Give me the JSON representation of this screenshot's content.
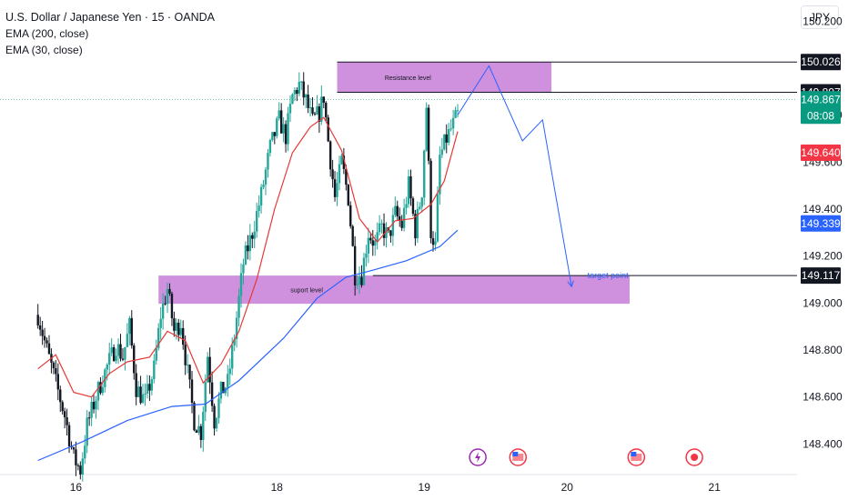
{
  "header": {
    "title": "U.S. Dollar / Japanese Yen · 15 · OANDA",
    "indicators": [
      "EMA (200, close)",
      "EMA (30, close)"
    ],
    "currency_button": "JPY"
  },
  "colors": {
    "up": "#26a69a",
    "down": "#131722",
    "ema200": "#2962ff",
    "ema30": "#e53935",
    "zone": "#c77ed8",
    "arrow": "#2962ff",
    "badge_current": "#089981",
    "badge_red": "#f23645",
    "badge_blue": "#2962ff",
    "badge_black": "#131722"
  },
  "chart_data": {
    "type": "candlestick",
    "ylim": [
      148.27,
      150.29
    ],
    "y_ticks": [
      "150.200",
      "149.800",
      "149.600",
      "149.400",
      "149.200",
      "149.000",
      "148.800",
      "148.600",
      "148.400"
    ],
    "x_ticks": [
      {
        "label": "16",
        "t": 17
      },
      {
        "label": "18",
        "t": 107
      },
      {
        "label": "19",
        "t": 173
      },
      {
        "label": "20",
        "t": 237
      },
      {
        "label": "21",
        "t": 303
      }
    ],
    "t_range": [
      -17,
      340
    ],
    "close_path": [
      [
        0,
        148.95
      ],
      [
        4,
        148.8
      ],
      [
        8,
        148.66
      ],
      [
        12,
        148.52
      ],
      [
        16,
        148.34
      ],
      [
        19,
        148.29
      ],
      [
        22,
        148.48
      ],
      [
        27,
        148.63
      ],
      [
        31,
        148.73
      ],
      [
        35,
        148.82
      ],
      [
        38,
        148.77
      ],
      [
        41,
        148.9
      ],
      [
        44,
        148.64
      ],
      [
        48,
        148.58
      ],
      [
        52,
        148.72
      ],
      [
        55,
        148.95
      ],
      [
        58,
        149.06
      ],
      [
        61,
        148.88
      ],
      [
        64,
        148.92
      ],
      [
        67,
        148.7
      ],
      [
        70,
        148.5
      ],
      [
        73,
        148.45
      ],
      [
        76,
        148.78
      ],
      [
        79,
        148.5
      ],
      [
        82,
        148.62
      ],
      [
        85,
        148.66
      ],
      [
        88,
        148.86
      ],
      [
        92,
        149.17
      ],
      [
        96,
        149.3
      ],
      [
        100,
        149.46
      ],
      [
        104,
        149.66
      ],
      [
        108,
        149.78
      ],
      [
        111,
        149.71
      ],
      [
        114,
        149.88
      ],
      [
        117,
        149.93
      ],
      [
        120,
        149.86
      ],
      [
        123,
        149.77
      ],
      [
        126,
        149.81
      ],
      [
        128,
        149.88
      ],
      [
        130,
        149.69
      ],
      [
        133,
        149.45
      ],
      [
        136,
        149.6
      ],
      [
        139,
        149.45
      ],
      [
        142,
        149.12
      ],
      [
        145,
        149.12
      ],
      [
        148,
        149.3
      ],
      [
        151,
        149.25
      ],
      [
        154,
        149.32
      ],
      [
        157,
        149.28
      ],
      [
        160,
        149.38
      ],
      [
        163,
        149.33
      ],
      [
        166,
        149.5
      ],
      [
        169,
        149.31
      ],
      [
        172,
        149.48
      ],
      [
        174,
        149.84
      ],
      [
        176,
        149.31
      ],
      [
        178,
        149.24
      ],
      [
        180,
        149.62
      ],
      [
        183,
        149.7
      ],
      [
        186,
        149.76
      ],
      [
        188,
        149.8
      ]
    ],
    "series": [
      {
        "name": "EMA (200, close)",
        "points": [
          [
            0,
            148.33
          ],
          [
            20,
            148.41
          ],
          [
            40,
            148.5
          ],
          [
            60,
            148.56
          ],
          [
            75,
            148.57
          ],
          [
            90,
            148.67
          ],
          [
            110,
            148.85
          ],
          [
            125,
            149.02
          ],
          [
            138,
            149.11
          ],
          [
            150,
            149.14
          ],
          [
            165,
            149.18
          ],
          [
            180,
            149.24
          ],
          [
            188,
            149.31
          ]
        ]
      },
      {
        "name": "EMA (30, close)",
        "points": [
          [
            0,
            148.72
          ],
          [
            8,
            148.78
          ],
          [
            16,
            148.62
          ],
          [
            24,
            148.6
          ],
          [
            32,
            148.7
          ],
          [
            40,
            148.75
          ],
          [
            50,
            148.77
          ],
          [
            58,
            148.88
          ],
          [
            66,
            148.84
          ],
          [
            74,
            148.66
          ],
          [
            82,
            148.74
          ],
          [
            90,
            148.88
          ],
          [
            98,
            149.1
          ],
          [
            106,
            149.4
          ],
          [
            114,
            149.64
          ],
          [
            122,
            149.75
          ],
          [
            128,
            149.79
          ],
          [
            136,
            149.65
          ],
          [
            144,
            149.36
          ],
          [
            152,
            149.26
          ],
          [
            160,
            149.35
          ],
          [
            168,
            149.36
          ],
          [
            176,
            149.42
          ],
          [
            182,
            149.52
          ],
          [
            188,
            149.73
          ]
        ]
      }
    ],
    "zones": [
      {
        "label": "Resistance level",
        "t1": 134,
        "t2": 230,
        "y_top": 150.026,
        "y_bottom": 149.897
      },
      {
        "label": "suport level",
        "t1": 54,
        "t2": 265,
        "y_top": 149.117,
        "y_bottom": 148.997
      }
    ],
    "level_lines": [
      {
        "value": 150.026,
        "t1": 134
      },
      {
        "value": 149.897,
        "t1": 134
      },
      {
        "value": 149.117,
        "t1": 150
      }
    ],
    "current_line": 149.867,
    "projection": {
      "label": "target point",
      "points": [
        [
          188,
          149.8
        ],
        [
          202,
          150.01
        ],
        [
          217,
          149.69
        ],
        [
          226,
          149.78
        ],
        [
          239,
          149.07
        ]
      ]
    },
    "price_badges": [
      {
        "value": "150.026",
        "sub": "",
        "color": "#131722"
      },
      {
        "value": "149.897",
        "sub": "",
        "color": "#131722"
      },
      {
        "value": "149.867",
        "sub": "08:08",
        "color": "#089981"
      },
      {
        "value": "149.640",
        "sub": "",
        "color": "#f23645"
      },
      {
        "value": "149.339",
        "sub": "",
        "color": "#2962ff"
      },
      {
        "value": "149.117",
        "sub": "",
        "color": "#131722"
      }
    ],
    "events": [
      {
        "icon": "lightning-icon",
        "t": 197
      },
      {
        "icon": "us-flag-icon",
        "t": 215
      },
      {
        "icon": "us-flag-icon",
        "t": 268
      },
      {
        "icon": "record-icon",
        "t": 294
      }
    ]
  }
}
